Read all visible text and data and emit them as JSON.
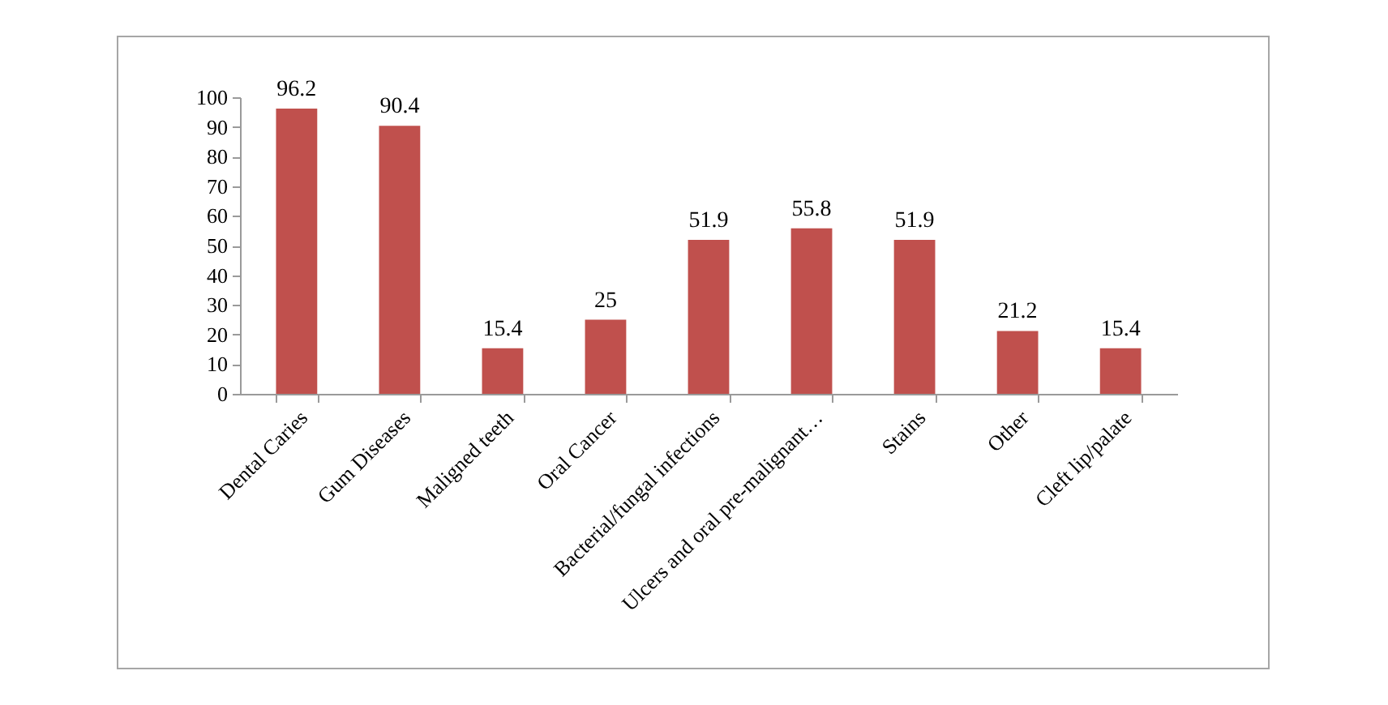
{
  "chart_data": {
    "type": "bar",
    "categories": [
      "Dental Caries",
      "Gum Diseases",
      "Maligned teeth",
      "Oral Cancer",
      "Bacterial/fungal infections",
      "Ulcers and oral pre-malignant…",
      "Stains",
      "Other",
      "Cleft lip/palate"
    ],
    "values": [
      96.2,
      90.4,
      15.4,
      25,
      51.9,
      55.8,
      51.9,
      21.2,
      15.4
    ],
    "color": "#c0504d",
    "ylim": [
      0,
      100
    ],
    "yticks": [
      0,
      10,
      20,
      30,
      40,
      50,
      60,
      70,
      80,
      90,
      100
    ],
    "data_labels": true
  }
}
